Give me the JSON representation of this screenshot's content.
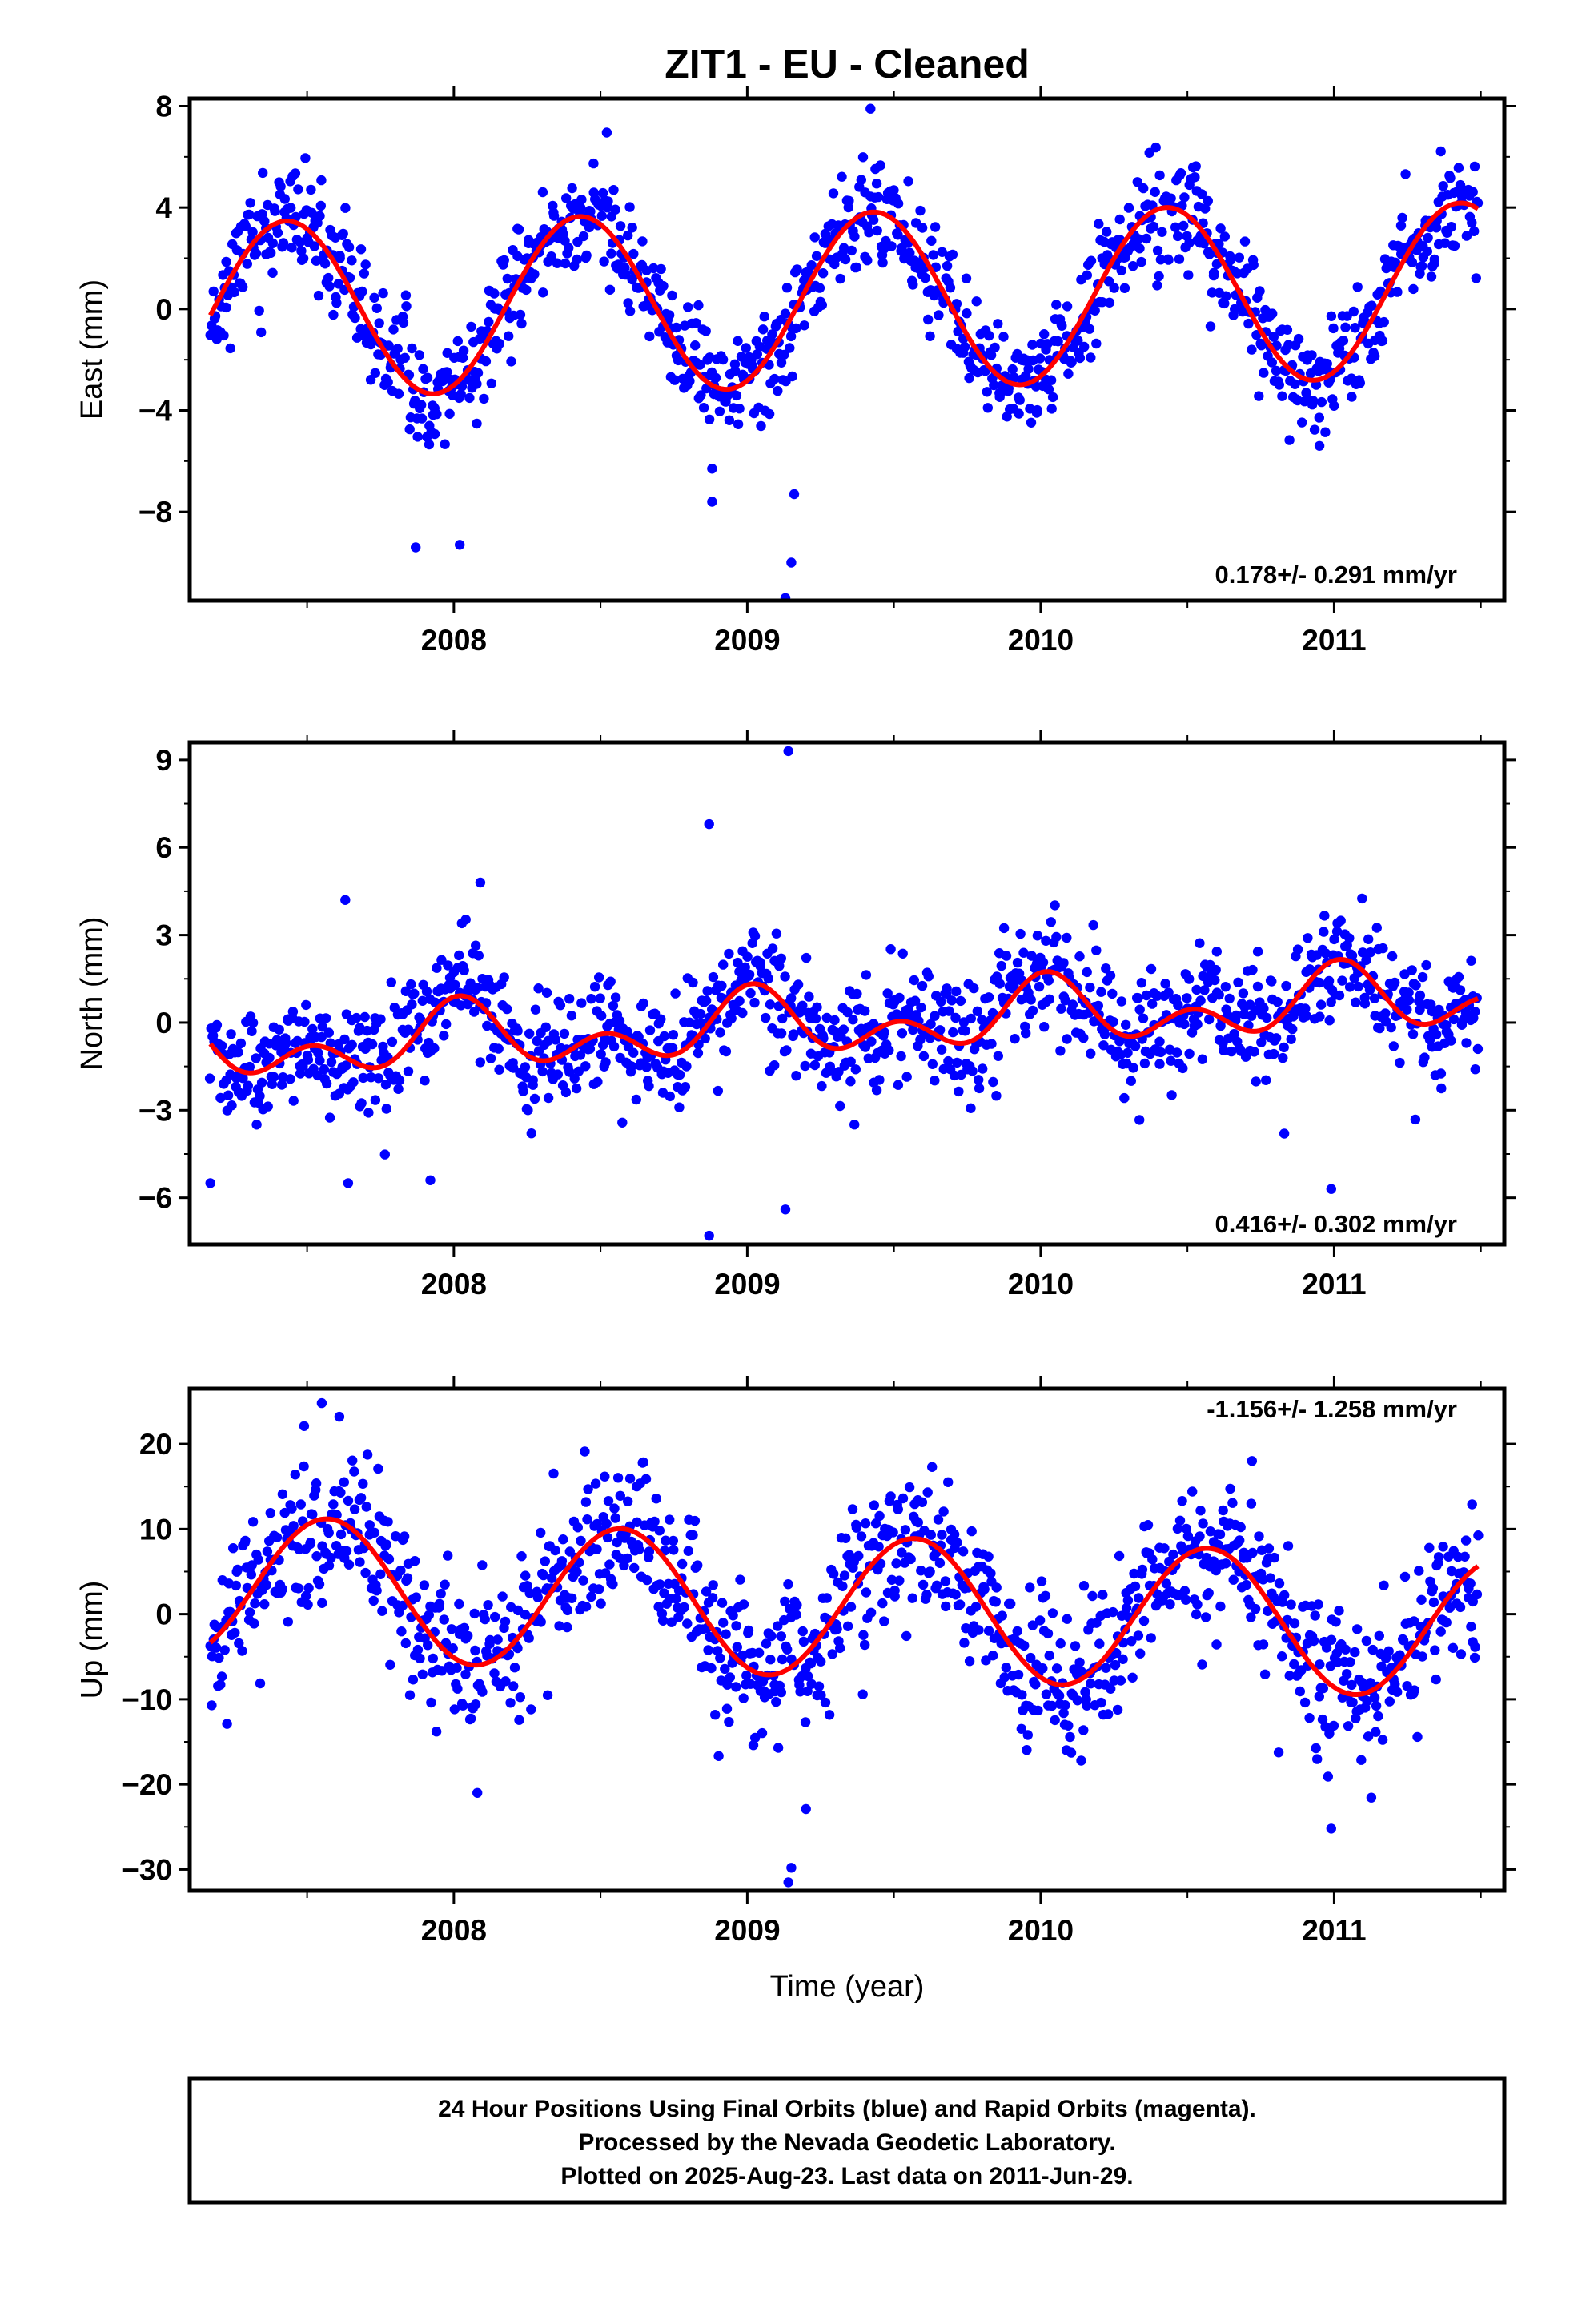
{
  "title": "ZIT1  - EU - Cleaned",
  "xlabel": "Time (year)",
  "footer": {
    "line1": "24 Hour Positions Using Final Orbits (blue) and Rapid Orbits (magenta).",
    "line2": "Processed by the Nevada Geodetic Laboratory.",
    "line3": "Plotted on 2025-Aug-23. Last data on 2011-Jun-29."
  },
  "colors": {
    "data": "#0000ff",
    "model": "#ff0000",
    "frame": "#000000"
  },
  "chart_data": [
    {
      "type": "scatter",
      "ylabel": "East (mm)",
      "rate_label": "0.178+/- 0.291 mm/yr",
      "xlim": [
        2007.1,
        2011.58
      ],
      "ylim": [
        -11.5,
        8.3
      ],
      "yticks": [
        "8",
        "4",
        "0",
        "−4",
        "−8"
      ],
      "ytick_values": [
        8,
        4,
        0,
        -4,
        -8
      ],
      "xticks": [
        "2008",
        "2009",
        "2010",
        "2011"
      ],
      "xtick_values": [
        2008,
        2009,
        2010,
        2011
      ],
      "series": [
        {
          "kind": "points",
          "x_start": 2007.17,
          "x_end": 2011.49,
          "n": 1150,
          "model_ref": "model",
          "scatter_sd": 1.05,
          "seed": 11,
          "outliers": [
            [
              2007.87,
              -9.4
            ],
            [
              2008.02,
              -9.3
            ],
            [
              2009.13,
              -11.4
            ],
            [
              2009.15,
              -10.0
            ],
            [
              2009.16,
              -7.3
            ],
            [
              2008.88,
              -7.6
            ],
            [
              2009.42,
              7.9
            ],
            [
              2010.95,
              -5.4
            ],
            [
              2008.88,
              -6.3
            ]
          ]
        },
        {
          "kind": "model",
          "name": "model",
          "offset": 0.35,
          "rate": 0.178,
          "x0": 2009.3,
          "annual_amp": 3.45,
          "annual_peak": 2007.43,
          "semi_amp": 0.0,
          "semi_peak": 2007.3
        }
      ]
    },
    {
      "type": "scatter",
      "ylabel": "North (mm)",
      "rate_label": "0.416+/- 0.302 mm/yr",
      "xlim": [
        2007.1,
        2011.58
      ],
      "ylim": [
        -7.6,
        9.6
      ],
      "yticks": [
        "9",
        "6",
        "3",
        "0",
        "−3",
        "−6"
      ],
      "ytick_values": [
        9,
        6,
        3,
        0,
        -3,
        -6
      ],
      "xticks": [
        "2008",
        "2009",
        "2010",
        "2011"
      ],
      "xtick_values": [
        2008,
        2009,
        2010,
        2011
      ],
      "series": [
        {
          "kind": "points",
          "x_start": 2007.17,
          "x_end": 2011.49,
          "n": 1150,
          "model_ref": "model",
          "scatter_sd": 0.95,
          "seed": 23,
          "outliers": [
            [
              2007.17,
              -5.5
            ],
            [
              2007.64,
              -5.5
            ],
            [
              2007.92,
              -5.4
            ],
            [
              2008.87,
              -7.3
            ],
            [
              2009.13,
              -6.4
            ],
            [
              2009.14,
              9.3
            ],
            [
              2008.87,
              6.8
            ],
            [
              2007.63,
              4.2
            ],
            [
              2010.99,
              -5.7
            ],
            [
              2010.83,
              -3.8
            ],
            [
              2008.09,
              4.8
            ]
          ]
        },
        {
          "kind": "model",
          "name": "model",
          "offset": -0.05,
          "rate": 0.416,
          "x0": 2009.3,
          "annual_amp": 0.75,
          "annual_peak": 2008.02,
          "semi_amp": 0.75,
          "semi_peak": 2008.02
        }
      ]
    },
    {
      "type": "scatter",
      "ylabel": "Up (mm)",
      "rate_label": "-1.156+/- 1.258 mm/yr",
      "xlim": [
        2007.1,
        2011.58
      ],
      "ylim": [
        -32.5,
        26.5
      ],
      "yticks": [
        "20",
        "10",
        "0",
        "−10",
        "−20",
        "−30"
      ],
      "ytick_values": [
        20,
        10,
        0,
        -10,
        -20,
        -30
      ],
      "xticks": [
        "2008",
        "2009",
        "2010",
        "2011"
      ],
      "xtick_values": [
        2008,
        2009,
        2010,
        2011
      ],
      "series": [
        {
          "kind": "points",
          "x_start": 2007.17,
          "x_end": 2011.49,
          "n": 1150,
          "model_ref": "model",
          "scatter_sd": 4.3,
          "seed": 37,
          "outliers": [
            [
              2007.55,
              24.8
            ],
            [
              2007.61,
              23.2
            ],
            [
              2009.14,
              -31.5
            ],
            [
              2009.15,
              -29.8
            ],
            [
              2009.2,
              -22.9
            ],
            [
              2010.99,
              -25.2
            ],
            [
              2011.47,
              12.9
            ],
            [
              2008.08,
              -21.0
            ],
            [
              2010.72,
              18.0
            ],
            [
              2007.49,
              22.1
            ]
          ]
        },
        {
          "kind": "model",
          "name": "model",
          "offset": 0.9,
          "rate": -1.156,
          "x0": 2009.3,
          "annual_amp": 8.3,
          "annual_peak": 2007.57,
          "semi_amp": 0.0,
          "semi_peak": 2007.3
        }
      ]
    }
  ]
}
